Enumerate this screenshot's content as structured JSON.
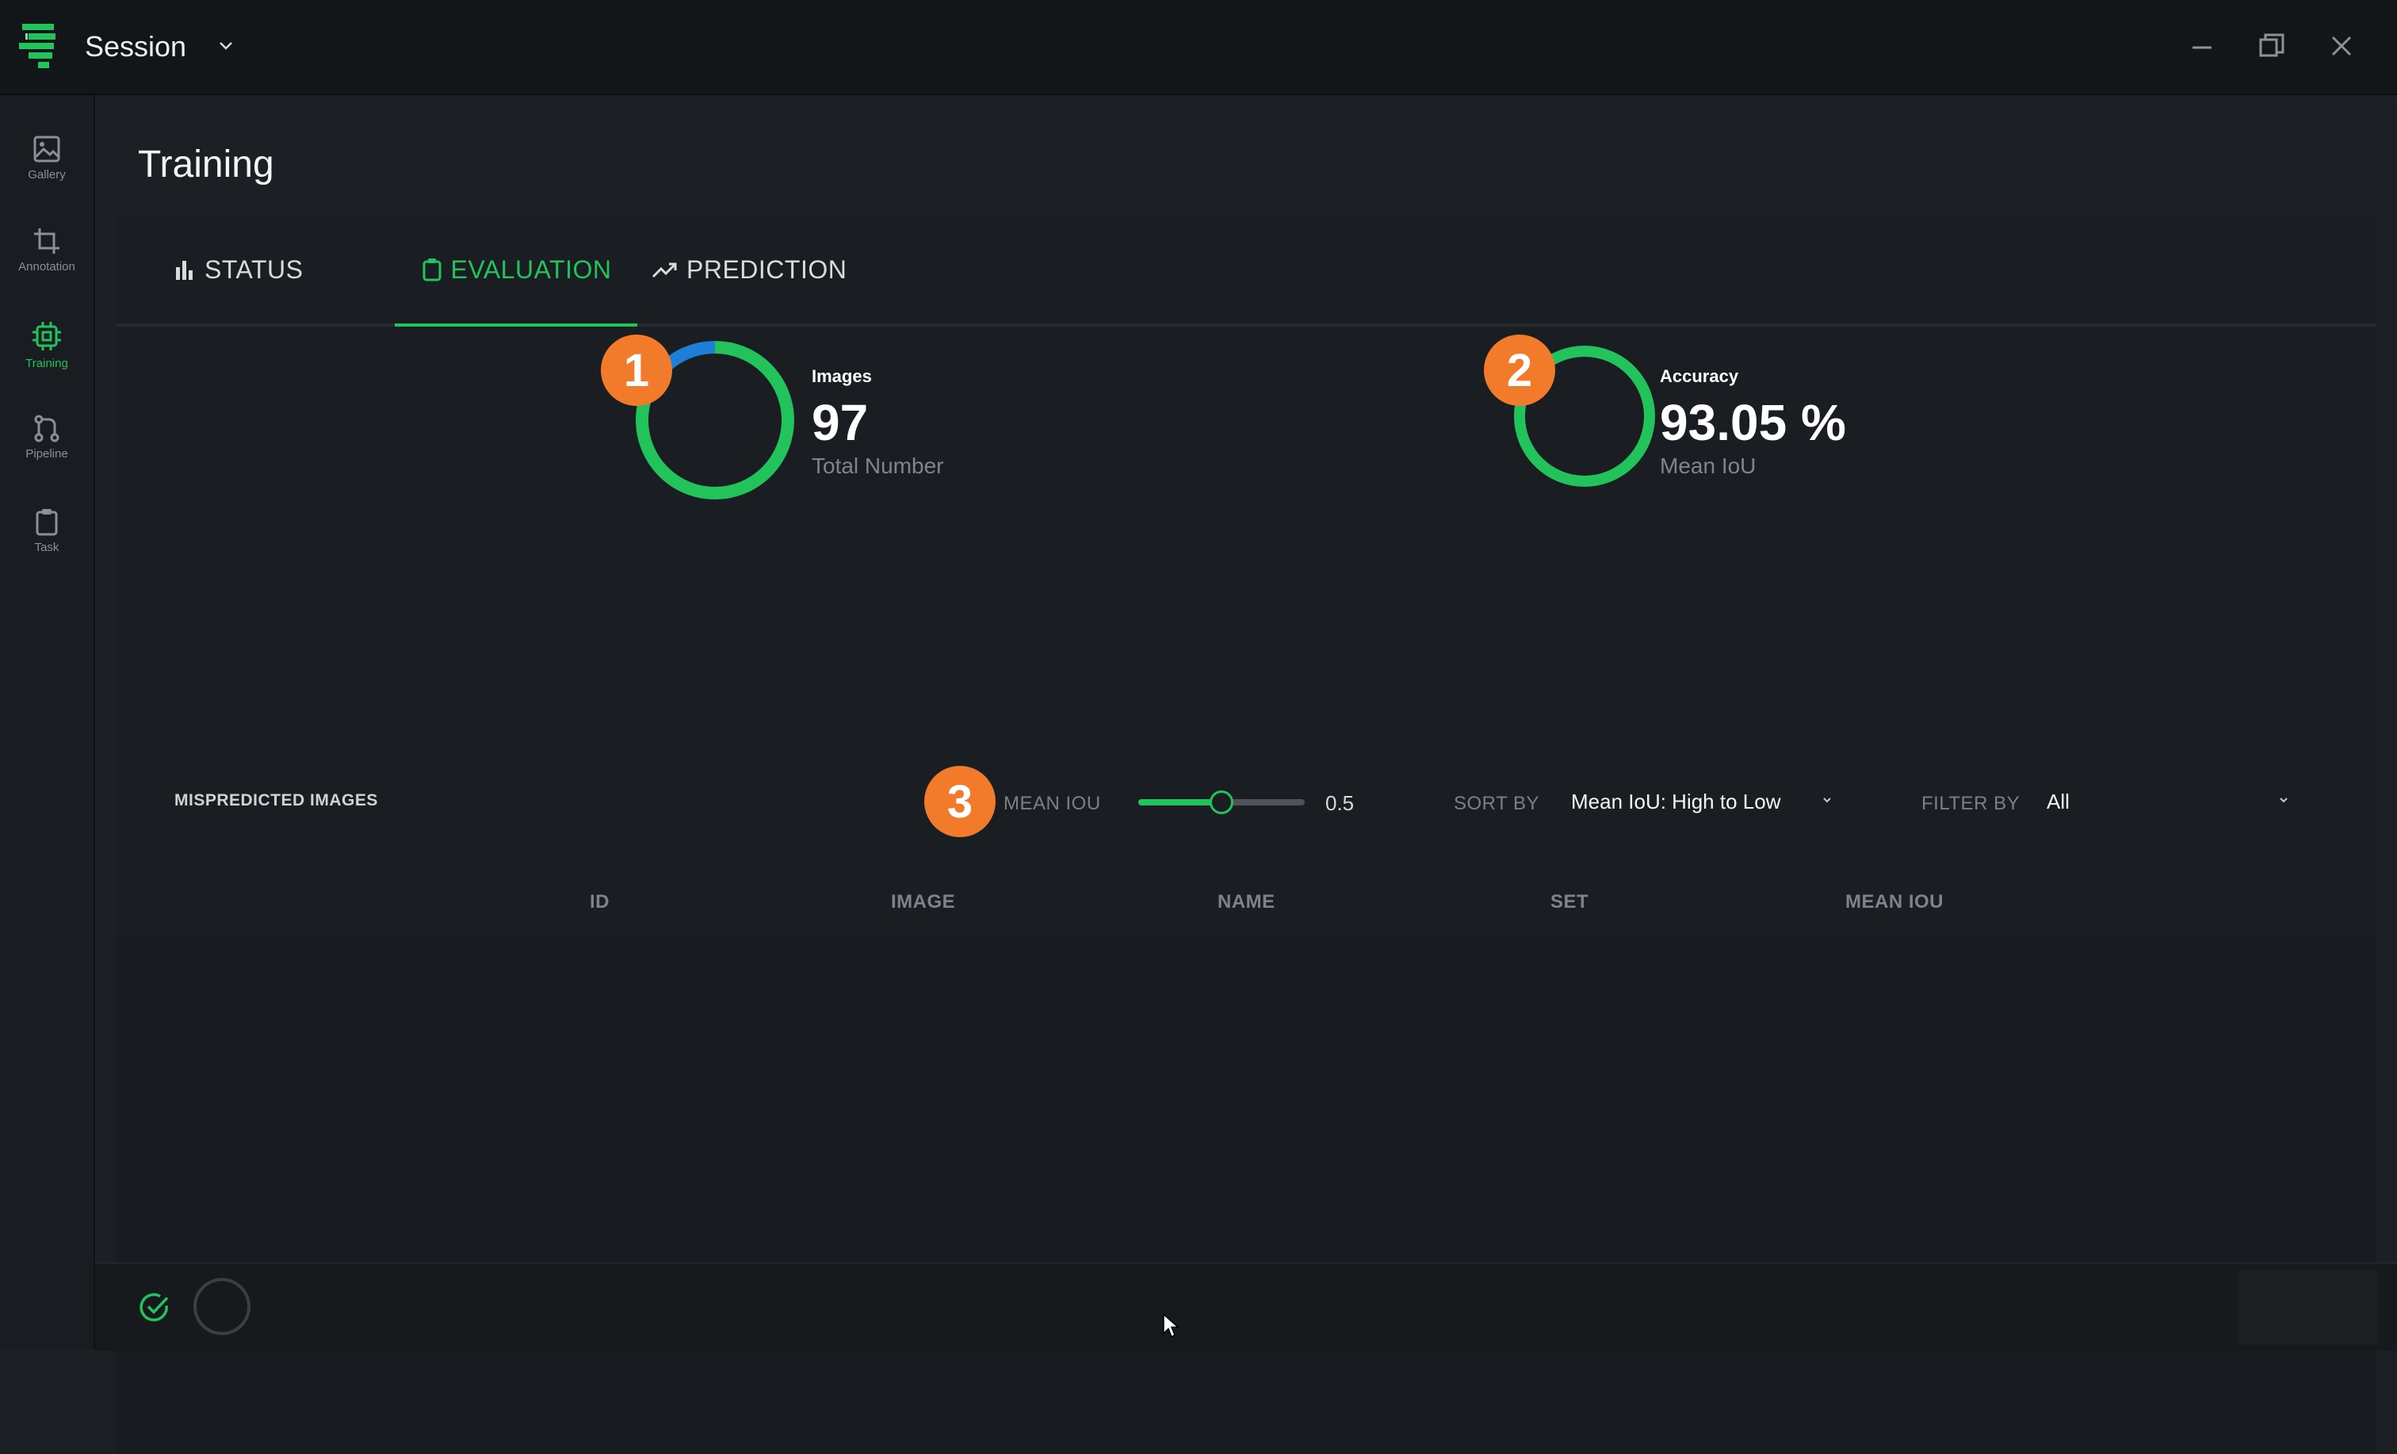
{
  "app": {
    "session_title": "Session"
  },
  "colors": {
    "accent": "#22c35a",
    "marker": "#f27b2b",
    "secondary_ring": "#1e7fd6"
  },
  "sidebar": {
    "items": [
      {
        "label": "Gallery",
        "icon": "image-icon",
        "active": false
      },
      {
        "label": "Annotation",
        "icon": "crop-icon",
        "active": false
      },
      {
        "label": "Training",
        "icon": "chip-icon",
        "active": true
      },
      {
        "label": "Pipeline",
        "icon": "git-branch-icon",
        "active": false
      },
      {
        "label": "Task",
        "icon": "clipboard-icon",
        "active": false
      }
    ]
  },
  "page": {
    "title": "Training"
  },
  "tabs": [
    {
      "label": "STATUS",
      "icon": "bar-chart-icon"
    },
    {
      "label": "EVALUATION",
      "icon": "clipboard-icon",
      "active": true
    },
    {
      "label": "PREDICTION",
      "icon": "trend-up-icon"
    }
  ],
  "markers": [
    "1",
    "2",
    "3"
  ],
  "images_stat": {
    "label": "Images",
    "value": "97",
    "caption": "Total Number",
    "ring_fraction_green": 0.87
  },
  "accuracy_stat": {
    "label": "Accuracy",
    "value": "93.05 %",
    "caption": "Mean IoU",
    "ring_fraction_green": 1.0
  },
  "filters": {
    "section_title": "MISPREDICTED IMAGES",
    "mean_iou_label": "MEAN IOU",
    "mean_iou_value": "0.5",
    "slider_fraction": 0.5,
    "sort_label": "SORT BY",
    "sort_value": "Mean IoU: High to Low",
    "filter_label": "FILTER BY",
    "filter_value": "All"
  },
  "table": {
    "columns": [
      "ID",
      "IMAGE",
      "NAME",
      "SET",
      "MEAN IOU"
    ],
    "rows": []
  }
}
